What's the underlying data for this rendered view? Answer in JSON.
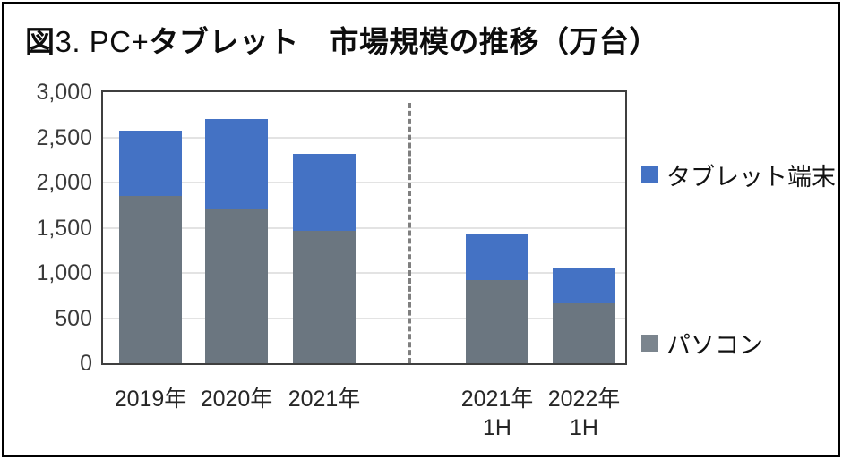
{
  "title": {
    "seg1": "図",
    "seg2": "3. PC+",
    "seg3": "タブレット　市場規模の推移（万台）"
  },
  "chart_data": {
    "type": "bar",
    "stacked": true,
    "title": "図3. PC+タブレット 市場規模の推移（万台）",
    "unit": "万台",
    "categories": [
      {
        "label": "2019年",
        "sub": ""
      },
      {
        "label": "2020年",
        "sub": ""
      },
      {
        "label": "2021年",
        "sub": ""
      },
      {
        "label": "2021年",
        "sub": "1H"
      },
      {
        "label": "2022年",
        "sub": "1H"
      }
    ],
    "series": [
      {
        "name": "パソコン",
        "color": "#6b7680",
        "values": [
          1850,
          1700,
          1470,
          920,
          660
        ]
      },
      {
        "name": "タブレット端末",
        "color": "#4472c4",
        "values": [
          720,
          1000,
          850,
          520,
          400
        ]
      }
    ],
    "totals": [
      2570,
      2700,
      2320,
      1440,
      1060
    ],
    "ylim": [
      0,
      3000
    ],
    "y_ticks": [
      {
        "value": 3000,
        "label": "3,000"
      },
      {
        "value": 2500,
        "label": "2,500"
      },
      {
        "value": 2000,
        "label": "2,000"
      },
      {
        "value": 1500,
        "label": "1,500"
      },
      {
        "value": 1000,
        "label": "1,000"
      },
      {
        "value": 500,
        "label": "500"
      },
      {
        "value": 0,
        "label": "0"
      }
    ],
    "grid": "horizontal",
    "legend_position": "right",
    "legend": [
      {
        "label": "タブレット端末",
        "color": "#4472c4"
      },
      {
        "label": "パソコン",
        "color": "#7b858e"
      }
    ],
    "divider_between_categories": [
      "2021年",
      "2021年 1H"
    ],
    "colors": {
      "pc_bar": "#6b7680",
      "tablet_bar": "#4472c4",
      "gridline": "#e3e3e3",
      "plot_border": "#3f3f3f",
      "divider": "#7f7f7f",
      "outer_border": "#000000"
    }
  }
}
